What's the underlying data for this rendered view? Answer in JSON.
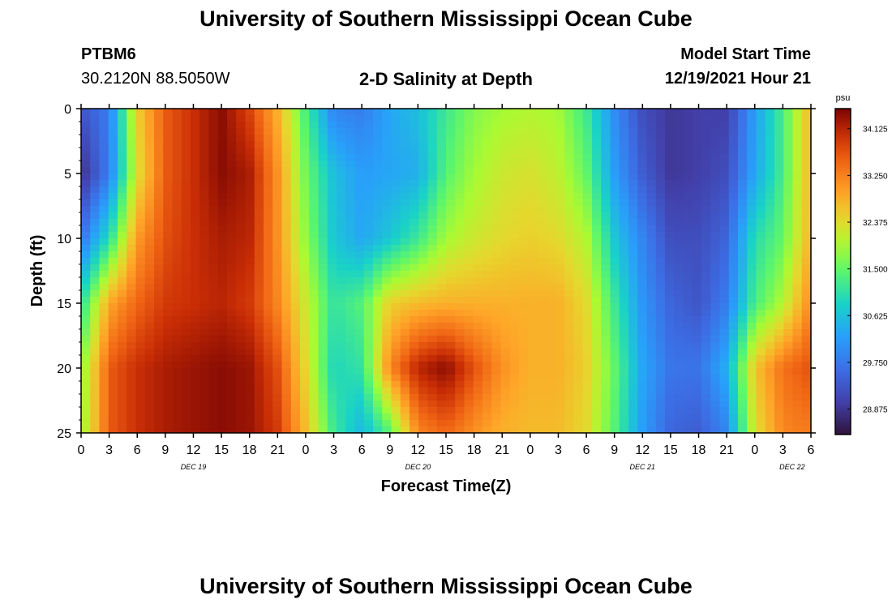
{
  "page": {
    "title": "University of Southern Mississippi Ocean Cube",
    "footer_title": "University of Southern Mississippi Ocean Cube",
    "station_id": "PTBM6",
    "coordinates": "30.2120N  88.5050W",
    "model_start_label": "Model Start Time",
    "model_start_value": "12/19/2021 Hour 21"
  },
  "chart_data": {
    "type": "heatmap",
    "title": "2-D Salinity at Depth",
    "xlabel": "Forecast Time(Z)",
    "ylabel": "Depth (ft)",
    "x_unit": "hours since Dec 19 00Z",
    "xlim": [
      0,
      78
    ],
    "ylim": [
      0,
      25
    ],
    "y_ticks": [
      0,
      5,
      10,
      15,
      20,
      25
    ],
    "x_ticks": [
      {
        "x": 0,
        "label": "0"
      },
      {
        "x": 3,
        "label": "3"
      },
      {
        "x": 6,
        "label": "6"
      },
      {
        "x": 9,
        "label": "9"
      },
      {
        "x": 12,
        "label": "12"
      },
      {
        "x": 15,
        "label": "15"
      },
      {
        "x": 18,
        "label": "18"
      },
      {
        "x": 21,
        "label": "21"
      },
      {
        "x": 24,
        "label": "0"
      },
      {
        "x": 27,
        "label": "3"
      },
      {
        "x": 30,
        "label": "6"
      },
      {
        "x": 33,
        "label": "9"
      },
      {
        "x": 36,
        "label": "12"
      },
      {
        "x": 39,
        "label": "15"
      },
      {
        "x": 42,
        "label": "18"
      },
      {
        "x": 45,
        "label": "21"
      },
      {
        "x": 48,
        "label": "0"
      },
      {
        "x": 51,
        "label": "3"
      },
      {
        "x": 54,
        "label": "6"
      },
      {
        "x": 57,
        "label": "9"
      },
      {
        "x": 60,
        "label": "12"
      },
      {
        "x": 63,
        "label": "15"
      },
      {
        "x": 66,
        "label": "18"
      },
      {
        "x": 69,
        "label": "21"
      },
      {
        "x": 72,
        "label": "0"
      },
      {
        "x": 75,
        "label": "3"
      },
      {
        "x": 78,
        "label": "6"
      }
    ],
    "date_labels": [
      {
        "x": 12,
        "label": "DEC 19"
      },
      {
        "x": 36,
        "label": "DEC 20"
      },
      {
        "x": 60,
        "label": "DEC 21"
      },
      {
        "x": 76,
        "label": "DEC 22"
      }
    ],
    "colorbar": {
      "unit": "psu",
      "min": 28.4,
      "max": 34.5,
      "ticks": [
        34.125,
        33.25,
        32.375,
        31.5,
        30.625,
        29.75,
        28.875
      ],
      "tick_labels": [
        "34.125",
        "33.250",
        "32.375",
        "31.500",
        "30.625",
        "29.750",
        "28.875"
      ]
    },
    "time_hours": [
      0,
      3,
      6,
      9,
      12,
      15,
      18,
      21,
      24,
      27,
      30,
      33,
      36,
      39,
      42,
      45,
      48,
      51,
      54,
      57,
      60,
      63,
      66,
      69,
      72,
      75,
      78
    ],
    "depths_ft": [
      0,
      5,
      10,
      15,
      20,
      25
    ],
    "salinity_psu": [
      [
        29.3,
        29.8,
        32.5,
        33.6,
        34.0,
        34.4,
        33.8,
        32.8,
        31.3,
        29.9,
        29.8,
        30.3,
        30.6,
        31.2,
        31.7,
        31.9,
        32.0,
        31.9,
        31.2,
        30.0,
        29.2,
        28.9,
        29.0,
        29.0,
        30.2,
        31.3,
        32.8
      ],
      [
        28.8,
        29.8,
        32.3,
        33.6,
        34.0,
        34.4,
        34.2,
        33.1,
        31.6,
        30.6,
        30.2,
        30.3,
        30.4,
        31.4,
        31.9,
        32.2,
        32.3,
        32.1,
        31.5,
        30.2,
        29.4,
        28.9,
        29.0,
        29.2,
        30.3,
        31.3,
        32.8
      ],
      [
        29.7,
        31.0,
        33.0,
        33.7,
        34.0,
        34.2,
        34.1,
        33.1,
        31.8,
        30.7,
        30.3,
        30.7,
        31.2,
        31.9,
        32.2,
        32.4,
        32.5,
        32.4,
        32.0,
        30.7,
        29.9,
        29.2,
        29.2,
        29.5,
        31.0,
        31.5,
        32.8
      ],
      [
        31.0,
        32.9,
        33.5,
        33.9,
        34.0,
        34.1,
        33.9,
        33.2,
        32.2,
        31.1,
        31.4,
        32.5,
        32.7,
        32.8,
        32.8,
        32.8,
        32.8,
        32.8,
        32.4,
        31.2,
        30.1,
        29.5,
        29.3,
        29.8,
        31.3,
        32.0,
        33.2
      ],
      [
        31.7,
        33.6,
        34.0,
        34.2,
        34.3,
        34.4,
        34.3,
        33.7,
        32.4,
        30.9,
        31.1,
        33.2,
        34.1,
        34.4,
        33.7,
        33.1,
        32.8,
        32.8,
        32.5,
        31.5,
        30.3,
        29.7,
        29.7,
        30.4,
        32.6,
        33.4,
        33.7
      ],
      [
        31.8,
        33.6,
        34.0,
        34.2,
        34.3,
        34.4,
        34.3,
        33.9,
        32.7,
        31.2,
        30.5,
        31.4,
        33.2,
        33.5,
        33.1,
        32.8,
        32.7,
        32.7,
        32.4,
        31.4,
        30.2,
        29.5,
        29.4,
        29.9,
        32.3,
        33.2,
        33.3
      ]
    ]
  }
}
